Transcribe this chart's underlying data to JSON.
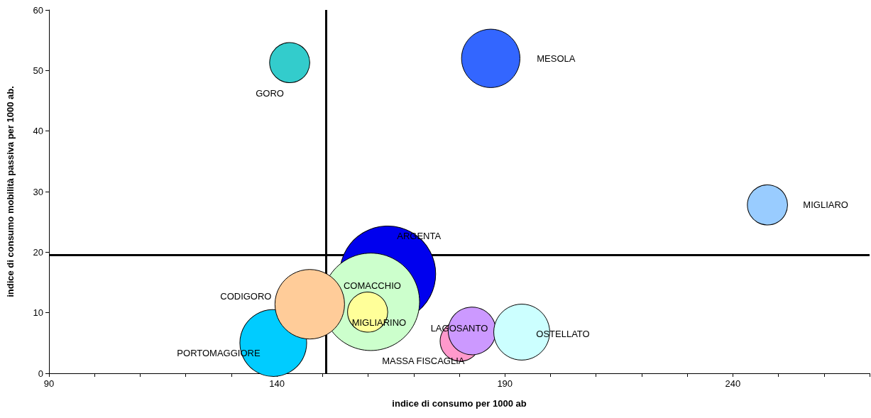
{
  "chart_data": {
    "type": "bubble",
    "xlabel": "indice di consumo per 1000 ab",
    "ylabel": "indice di consumo mobilità passiva per 1000 ab.",
    "xlim": [
      90,
      270
    ],
    "xticks": [
      90,
      {
        "value": 100,
        "label": null
      },
      {
        "value": 110,
        "label": null
      },
      {
        "value": 120,
        "label": null
      },
      {
        "value": 130,
        "label": null
      },
      140,
      {
        "value": 150,
        "label": null
      },
      {
        "value": 160,
        "label": null
      },
      {
        "value": 170,
        "label": null
      },
      {
        "value": 180,
        "label": null
      },
      190,
      {
        "value": 200,
        "label": null
      },
      {
        "value": 210,
        "label": null
      },
      {
        "value": 220,
        "label": null
      },
      {
        "value": 230,
        "label": null
      },
      240,
      {
        "value": 250,
        "label": null
      },
      {
        "value": 260,
        "label": null
      },
      {
        "value": 270,
        "label": null
      }
    ],
    "ylim": [
      0,
      60
    ],
    "yticks": [
      0,
      10,
      20,
      30,
      40,
      50,
      60
    ],
    "grid": false,
    "legend": false,
    "ref_lines": [
      {
        "axis": "x",
        "value": 150.7,
        "color": "#000000"
      },
      {
        "axis": "y",
        "value": 19.5,
        "color": "#000000"
      }
    ],
    "series": [
      {
        "name": "GORO",
        "color": "#33cccc",
        "x": [
          142.8
        ],
        "values": [
          51.3
        ],
        "sizes": [
          0.17
        ]
      },
      {
        "name": "MESOLA",
        "color": "#3366ff",
        "x": [
          186.9
        ],
        "values": [
          52.0
        ],
        "sizes": [
          0.36
        ]
      },
      {
        "name": "MIGLIARO",
        "color": "#99ccff",
        "x": [
          247.6
        ],
        "values": [
          27.8
        ],
        "sizes": [
          0.17
        ]
      },
      {
        "name": "ARGENTA",
        "color": "#0000ee",
        "x": [
          164.3
        ],
        "values": [
          16.4
        ],
        "sizes": [
          0.97
        ]
      },
      {
        "name": "COMACCHIO",
        "color": "#ccffcc",
        "x": [
          160.6
        ],
        "values": [
          11.8
        ],
        "sizes": [
          1
        ]
      },
      {
        "name": "PORTOMAGGIORE",
        "color": "#00ccff",
        "x": [
          139.2
        ],
        "values": [
          5.0
        ],
        "sizes": [
          0.47
        ]
      },
      {
        "name": "CODIGORO",
        "color": "#ffcc99",
        "x": [
          147.2
        ],
        "values": [
          11.4
        ],
        "sizes": [
          0.51
        ]
      },
      {
        "name": "MIGLIARINO",
        "color": "#ffff99",
        "x": [
          159.9
        ],
        "values": [
          10.1
        ],
        "sizes": [
          0.17
        ]
      },
      {
        "name": "MASSA FISCAGLIA",
        "color": "#ff99cc",
        "x": [
          180.2
        ],
        "values": [
          5.3
        ],
        "sizes": [
          0.17
        ]
      },
      {
        "name": "LAGOSANTO",
        "color": "#cc99ff",
        "x": [
          182.8
        ],
        "values": [
          7.0
        ],
        "sizes": [
          0.24
        ]
      },
      {
        "name": "OSTELLATO",
        "color": "#ccffff",
        "x": [
          193.7
        ],
        "values": [
          6.8
        ],
        "sizes": [
          0.33
        ]
      }
    ]
  }
}
